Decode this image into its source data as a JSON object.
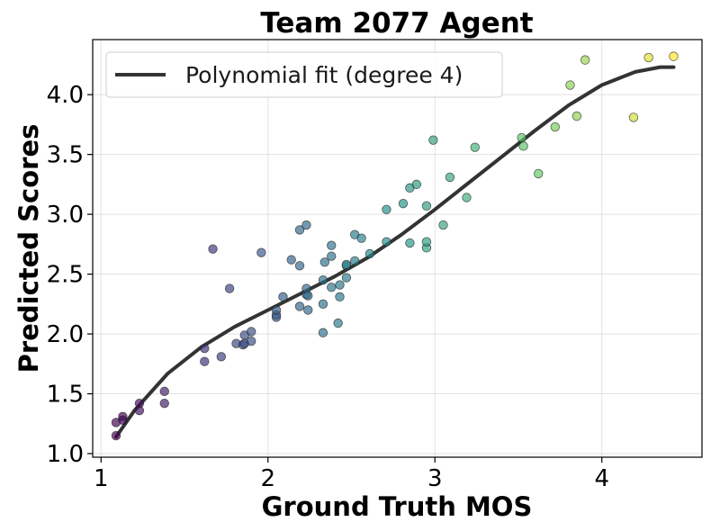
{
  "chart_data": {
    "type": "scatter",
    "title": "Team 2077 Agent",
    "xlabel": "Ground Truth MOS",
    "ylabel": "Predicted Scores",
    "xlim": [
      0.95,
      4.6
    ],
    "ylim": [
      0.97,
      4.46
    ],
    "x_ticks": [
      1,
      2,
      3,
      4
    ],
    "y_ticks": [
      1.0,
      1.5,
      2.0,
      2.5,
      3.0,
      3.5,
      4.0
    ],
    "x_tick_labels": [
      "1",
      "2",
      "3",
      "4"
    ],
    "y_tick_labels": [
      "1.0",
      "1.5",
      "2.0",
      "2.5",
      "3.0",
      "3.5",
      "4.0"
    ],
    "grid": true,
    "legend": {
      "position": "top-left",
      "entries": [
        "Polynomial fit (degree 4)"
      ]
    },
    "colormap": "viridis",
    "fit_color": "#333333",
    "fit": {
      "name": "Polynomial fit (degree 4)",
      "x": [
        1.09,
        1.2,
        1.4,
        1.6,
        1.8,
        2.0,
        2.2,
        2.4,
        2.6,
        2.8,
        3.0,
        3.2,
        3.4,
        3.6,
        3.8,
        4.0,
        4.2,
        4.35,
        4.43
      ],
      "y": [
        1.14,
        1.36,
        1.67,
        1.89,
        2.06,
        2.2,
        2.34,
        2.48,
        2.64,
        2.83,
        3.04,
        3.26,
        3.48,
        3.7,
        3.91,
        4.08,
        4.19,
        4.23,
        4.23
      ]
    },
    "points": {
      "x": [
        1.09,
        1.09,
        1.13,
        1.13,
        1.23,
        1.23,
        1.38,
        1.38,
        1.62,
        1.62,
        1.67,
        1.72,
        1.77,
        1.81,
        1.85,
        1.86,
        1.86,
        1.9,
        1.9,
        1.96,
        2.05,
        2.05,
        2.05,
        2.09,
        2.14,
        2.19,
        2.19,
        2.19,
        2.23,
        2.23,
        2.23,
        2.24,
        2.24,
        2.33,
        2.33,
        2.33,
        2.34,
        2.38,
        2.38,
        2.38,
        2.42,
        2.43,
        2.43,
        2.47,
        2.47,
        2.47,
        2.52,
        2.52,
        2.56,
        2.61,
        2.71,
        2.71,
        2.81,
        2.85,
        2.85,
        2.89,
        2.95,
        2.95,
        2.95,
        2.99,
        3.05,
        3.09,
        3.19,
        3.24,
        3.52,
        3.53,
        3.62,
        3.72,
        3.81,
        3.85,
        3.9,
        4.19,
        4.28,
        4.43
      ],
      "y": [
        1.15,
        1.26,
        1.28,
        1.31,
        1.36,
        1.42,
        1.42,
        1.52,
        1.77,
        1.88,
        2.71,
        1.81,
        2.38,
        1.92,
        1.91,
        1.99,
        1.92,
        2.02,
        1.94,
        2.68,
        2.14,
        2.16,
        2.2,
        2.31,
        2.62,
        2.23,
        2.57,
        2.87,
        2.91,
        2.33,
        2.38,
        2.2,
        2.32,
        2.01,
        2.25,
        2.45,
        2.6,
        2.39,
        2.65,
        2.74,
        2.09,
        2.31,
        2.41,
        2.47,
        2.57,
        2.58,
        2.61,
        2.83,
        2.8,
        2.67,
        2.77,
        3.04,
        3.09,
        2.76,
        3.22,
        3.25,
        2.72,
        2.77,
        3.07,
        3.62,
        2.91,
        3.31,
        3.14,
        3.56,
        3.64,
        3.57,
        3.34,
        3.73,
        4.08,
        3.82,
        4.29,
        3.81,
        4.31,
        4.32
      ]
    }
  }
}
